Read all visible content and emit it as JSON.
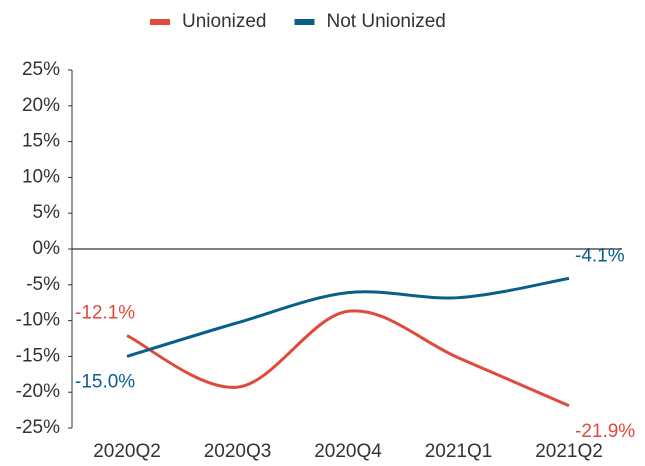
{
  "chart_data": {
    "type": "line",
    "categories": [
      "2020Q2",
      "2020Q3",
      "2020Q4",
      "2021Q1",
      "2021Q2"
    ],
    "series": [
      {
        "name": "Unionized",
        "color": "#e04a3a",
        "values": [
          -12.1,
          -19.3,
          -8.7,
          -15.2,
          -21.9
        ],
        "value_labels": [
          "-12.1%",
          null,
          null,
          null,
          "-21.9%"
        ]
      },
      {
        "name": "Not Unionized",
        "color": "#0a5f8a",
        "values": [
          -15.0,
          -10.3,
          -6.1,
          -6.8,
          -4.1
        ],
        "value_labels": [
          "-15.0%",
          null,
          null,
          null,
          "-4.1%"
        ]
      }
    ],
    "ylim": [
      -25,
      25
    ],
    "yticks": [
      {
        "value": 25,
        "label": "25%"
      },
      {
        "value": 20,
        "label": "20%"
      },
      {
        "value": 15,
        "label": "15%"
      },
      {
        "value": 10,
        "label": "10%"
      },
      {
        "value": 5,
        "label": "5%"
      },
      {
        "value": 0,
        "label": "0%"
      },
      {
        "value": -5,
        "label": "-5%"
      },
      {
        "value": -10,
        "label": "-10%"
      },
      {
        "value": -15,
        "label": "-15%"
      },
      {
        "value": -20,
        "label": "-20%"
      },
      {
        "value": -25,
        "label": "-25%"
      }
    ],
    "legend": "top",
    "smooth": true
  }
}
